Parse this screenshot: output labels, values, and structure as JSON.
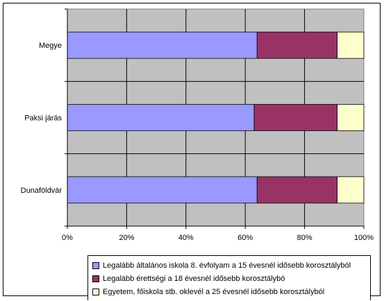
{
  "chart_data": {
    "type": "bar",
    "orientation": "horizontal",
    "stacked": "percent",
    "categories": [
      "Megye",
      "Paksi járás",
      "Dunaföldvár"
    ],
    "series": [
      {
        "name": "Legalább általános iskola 8. évfolyam a 15 évesnél idősebb korosztályból",
        "values": [
          64,
          63,
          64
        ],
        "color": "#9999ff"
      },
      {
        "name": "Legalább érettségi a 18 évesnél idősebb korosztálybó",
        "values": [
          27,
          28,
          27
        ],
        "color": "#993366"
      },
      {
        "name": "Egyetem, főiskola stb. oklevél a 25 évesnél idősebb korosztályból",
        "values": [
          9,
          9,
          9
        ],
        "color": "#ffffcc"
      }
    ],
    "xticks": [
      "0%",
      "20%",
      "40%",
      "60%",
      "80%",
      "100%"
    ],
    "xlim": [
      0,
      100
    ],
    "grid": true,
    "plot_background": "#c0c0c0",
    "legend_position": "bottom"
  }
}
